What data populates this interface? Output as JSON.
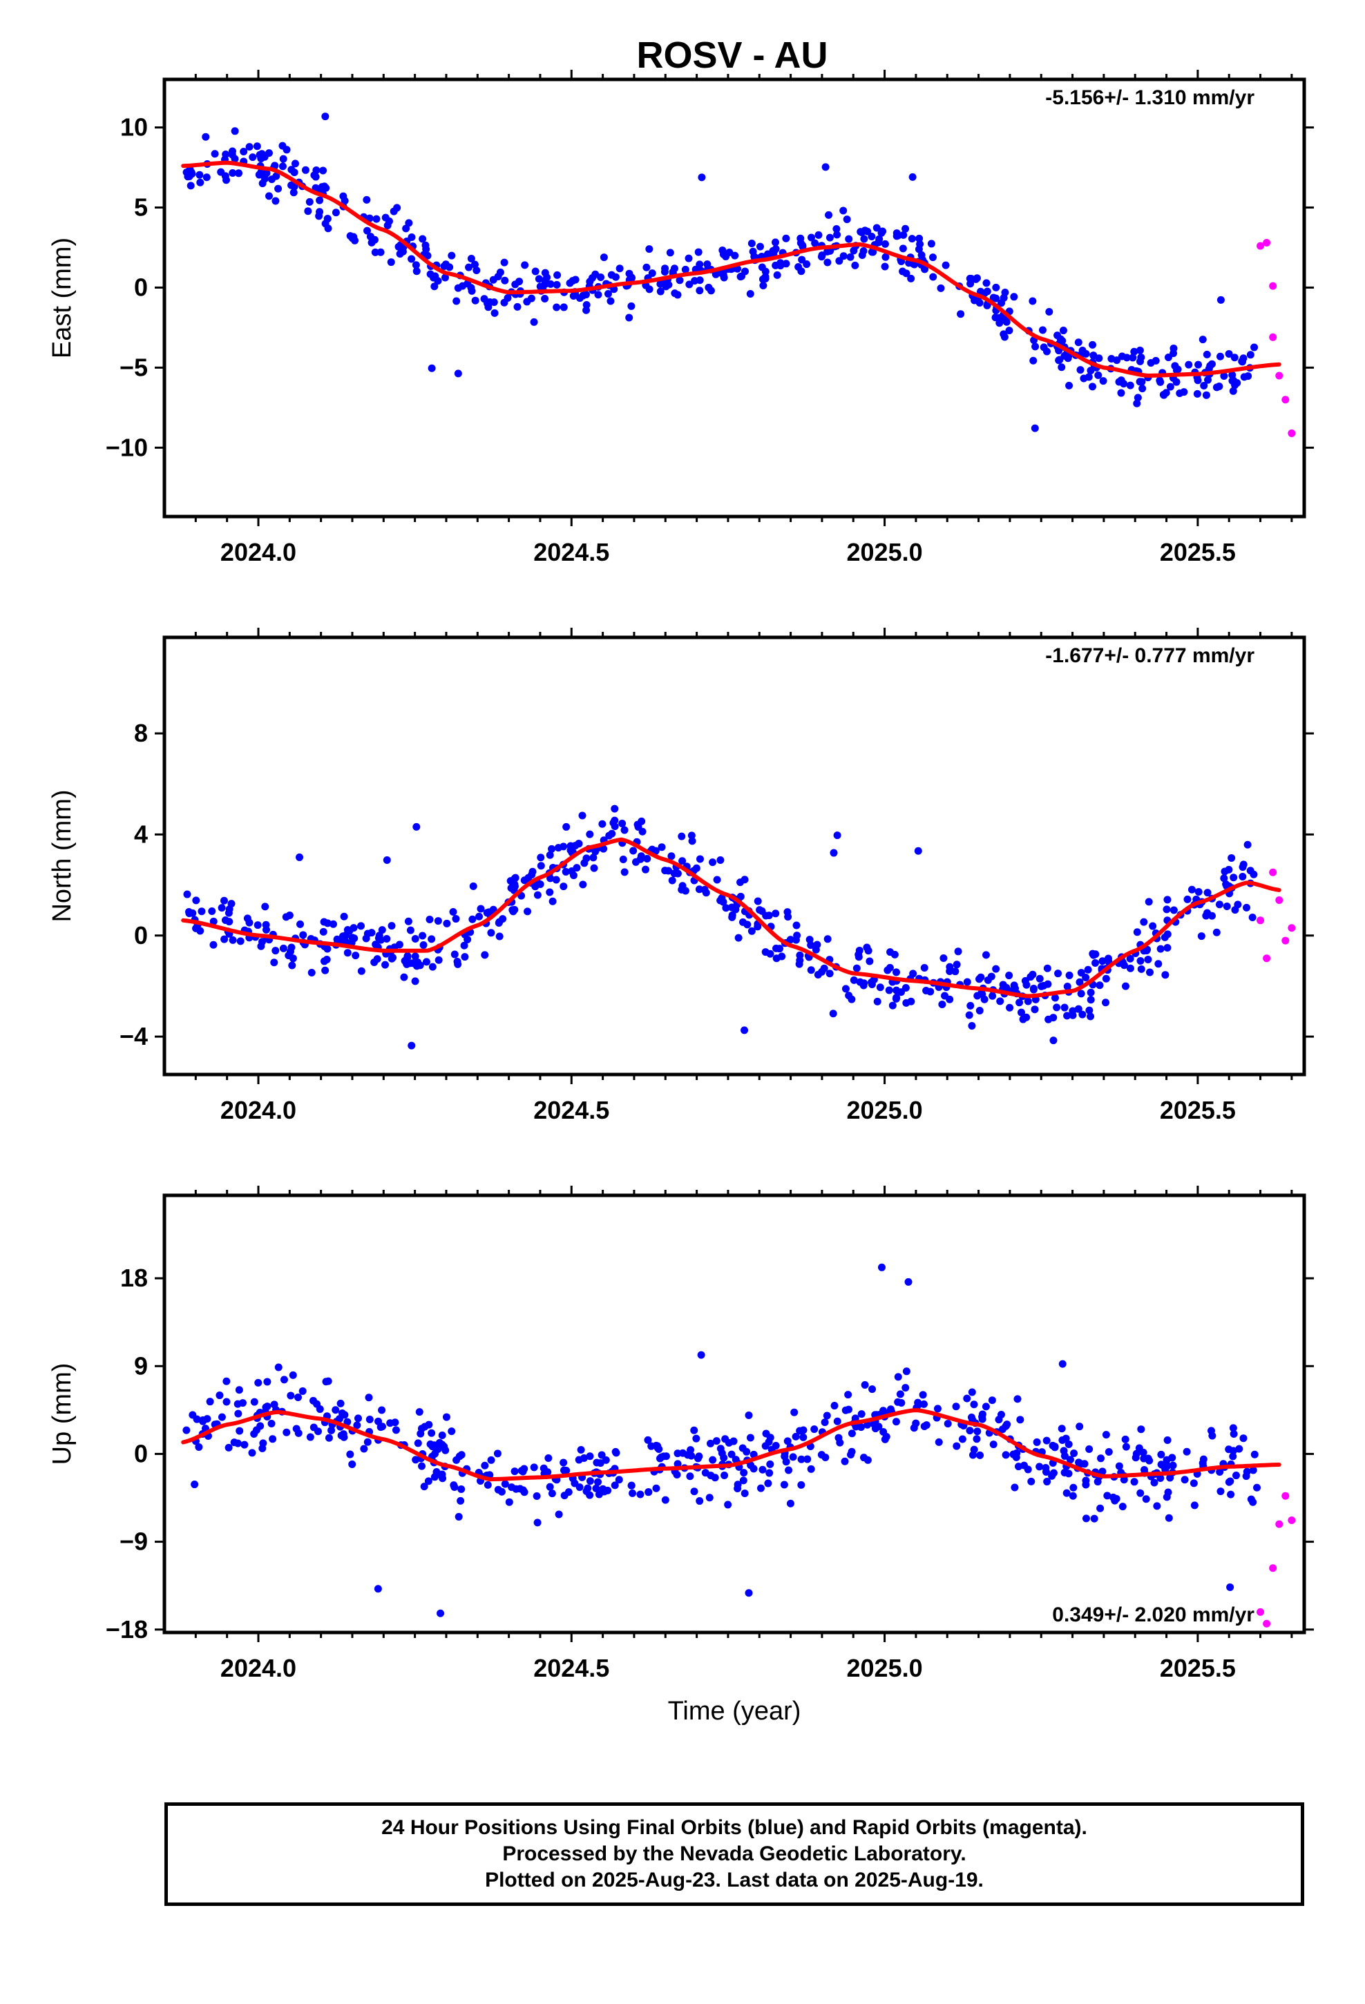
{
  "title": "ROSV - AU",
  "footer": {
    "line1": "24 Hour Positions Using Final Orbits (blue) and Rapid Orbits (magenta).",
    "line2": "Processed by the Nevada Geodetic Laboratory.",
    "line3": "Plotted on 2025-Aug-23. Last data on 2025-Aug-19."
  },
  "colors": {
    "final": "#0000ff",
    "rapid": "#ff00ff",
    "fit": "#ff0000"
  },
  "chart_data": [
    {
      "type": "scatter",
      "name": "east",
      "ylabel": "East (mm)",
      "xlabel": "",
      "rate": "-5.156+/- 1.310 mm/yr",
      "rate_position": "top-right",
      "xlim": [
        2023.85,
        2025.67
      ],
      "ylim": [
        -14.3,
        13.0
      ],
      "xticks": [
        "2024.0",
        "2024.5",
        "2025.0",
        "2025.5"
      ],
      "yticks": [
        10,
        5,
        0,
        -5,
        -10
      ],
      "yticklabels": [
        "10",
        "5",
        "0",
        "−5",
        "−10"
      ],
      "fit_knots": [
        [
          2023.88,
          7.6
        ],
        [
          2023.95,
          7.8
        ],
        [
          2024.02,
          7.4
        ],
        [
          2024.1,
          5.8
        ],
        [
          2024.2,
          3.6
        ],
        [
          2024.3,
          0.9
        ],
        [
          2024.4,
          -0.3
        ],
        [
          2024.5,
          -0.2
        ],
        [
          2024.6,
          0.3
        ],
        [
          2024.7,
          0.9
        ],
        [
          2024.8,
          1.7
        ],
        [
          2024.9,
          2.5
        ],
        [
          2024.96,
          2.7
        ],
        [
          2025.05,
          1.7
        ],
        [
          2025.15,
          -0.5
        ],
        [
          2025.25,
          -3.2
        ],
        [
          2025.35,
          -5.0
        ],
        [
          2025.42,
          -5.5
        ],
        [
          2025.5,
          -5.4
        ],
        [
          2025.63,
          -4.8
        ]
      ],
      "noise": 1.6,
      "rapid_points": [
        [
          2025.6,
          2.6
        ],
        [
          2025.61,
          2.8
        ],
        [
          2025.62,
          0.1
        ],
        [
          2025.62,
          -3.1
        ],
        [
          2025.63,
          -5.5
        ],
        [
          2025.64,
          -7.0
        ],
        [
          2025.65,
          -9.1
        ]
      ]
    },
    {
      "type": "scatter",
      "name": "north",
      "ylabel": "North (mm)",
      "xlabel": "",
      "rate": "-1.677+/- 0.777 mm/yr",
      "rate_position": "top-right",
      "xlim": [
        2023.85,
        2025.67
      ],
      "ylim": [
        -5.5,
        11.8
      ],
      "xticks": [
        "2024.0",
        "2024.5",
        "2025.0",
        "2025.5"
      ],
      "yticks": [
        8,
        4,
        0,
        -4
      ],
      "yticklabels": [
        "8",
        "4",
        "0",
        "−4"
      ],
      "fit_knots": [
        [
          2023.88,
          0.6
        ],
        [
          2024.0,
          0.0
        ],
        [
          2024.1,
          -0.3
        ],
        [
          2024.2,
          -0.6
        ],
        [
          2024.27,
          -0.6
        ],
        [
          2024.35,
          0.4
        ],
        [
          2024.45,
          2.3
        ],
        [
          2024.53,
          3.5
        ],
        [
          2024.58,
          3.8
        ],
        [
          2024.65,
          3.0
        ],
        [
          2024.75,
          1.6
        ],
        [
          2024.85,
          -0.4
        ],
        [
          2024.95,
          -1.5
        ],
        [
          2025.05,
          -1.8
        ],
        [
          2025.15,
          -2.1
        ],
        [
          2025.23,
          -2.4
        ],
        [
          2025.3,
          -2.2
        ],
        [
          2025.4,
          -0.6
        ],
        [
          2025.5,
          1.3
        ],
        [
          2025.58,
          2.1
        ],
        [
          2025.63,
          1.8
        ]
      ],
      "noise": 1.2,
      "rapid_points": [
        [
          2025.6,
          0.6
        ],
        [
          2025.61,
          -0.9
        ],
        [
          2025.62,
          2.5
        ],
        [
          2025.63,
          1.4
        ],
        [
          2025.64,
          -0.2
        ],
        [
          2025.65,
          0.3
        ]
      ]
    },
    {
      "type": "scatter",
      "name": "up",
      "ylabel": "Up (mm)",
      "xlabel": "Time (year)",
      "rate": "0.349+/- 2.020 mm/yr",
      "rate_position": "bottom-right",
      "xlim": [
        2023.85,
        2025.67
      ],
      "ylim": [
        -18.3,
        26.5
      ],
      "xticks": [
        "2024.0",
        "2024.5",
        "2025.0",
        "2025.5"
      ],
      "yticks": [
        18,
        9,
        0,
        -9,
        -18
      ],
      "yticklabels": [
        "18",
        "9",
        "0",
        "−9",
        "−18"
      ],
      "fit_knots": [
        [
          2023.88,
          1.2
        ],
        [
          2023.95,
          3.0
        ],
        [
          2024.03,
          4.3
        ],
        [
          2024.1,
          3.6
        ],
        [
          2024.2,
          1.5
        ],
        [
          2024.3,
          -1.2
        ],
        [
          2024.37,
          -2.6
        ],
        [
          2024.45,
          -2.4
        ],
        [
          2024.55,
          -1.9
        ],
        [
          2024.65,
          -1.5
        ],
        [
          2024.75,
          -1.2
        ],
        [
          2024.85,
          0.5
        ],
        [
          2024.95,
          3.2
        ],
        [
          2025.05,
          4.5
        ],
        [
          2025.15,
          3.0
        ],
        [
          2025.25,
          -0.2
        ],
        [
          2025.35,
          -2.3
        ],
        [
          2025.45,
          -2.0
        ],
        [
          2025.55,
          -1.3
        ],
        [
          2025.63,
          -1.1
        ]
      ],
      "noise": 3.6,
      "rapid_points": [
        [
          2025.6,
          -16.2
        ],
        [
          2025.61,
          -17.4
        ],
        [
          2025.62,
          -11.7
        ],
        [
          2025.63,
          -7.2
        ],
        [
          2025.64,
          -4.3
        ],
        [
          2025.65,
          -6.8
        ]
      ]
    }
  ]
}
